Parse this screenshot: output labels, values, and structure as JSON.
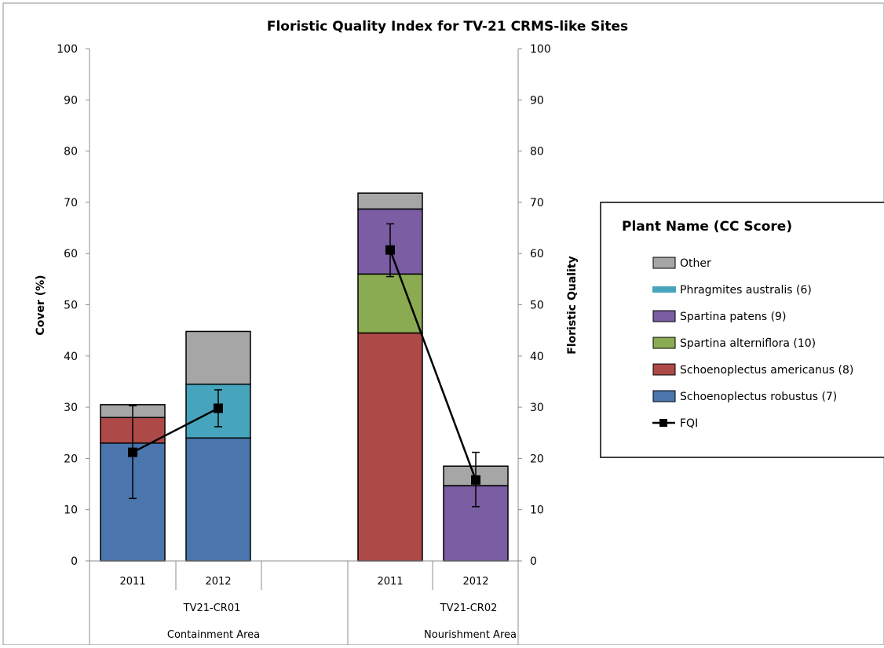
{
  "chart_data": {
    "type": "bar",
    "title": "Floristic Quality Index for TV-21 CRMS-like Sites",
    "ylabel": "Cover (%)",
    "y2label": "Floristic Quality",
    "ylim": [
      0,
      100
    ],
    "y2lim": [
      0,
      100
    ],
    "yticks": [
      "0",
      "10",
      "20",
      "30",
      "40",
      "50",
      "60",
      "70",
      "80",
      "90",
      "100"
    ],
    "categories": [
      "2011",
      "2012",
      "2011",
      "2012"
    ],
    "sites": [
      "TV21-CR01",
      "TV21-CR02"
    ],
    "areas": [
      "Containment Area",
      "Nourishment Area"
    ],
    "legend_title": "Plant Name (CC Score)",
    "legend_position": "right",
    "series": [
      {
        "name": "Schoenoplectus robustus (7)",
        "color": "#4a76ad",
        "values": [
          23,
          24,
          0,
          0
        ]
      },
      {
        "name": "Schoenoplectus americanus (8)",
        "color": "#ad4a47",
        "values": [
          5,
          0,
          44.5,
          0
        ]
      },
      {
        "name": "Spartina alterniflora (10)",
        "color": "#8aab52",
        "values": [
          0,
          0,
          11.5,
          0
        ]
      },
      {
        "name": "Spartina patens (9)",
        "color": "#7a5da2",
        "values": [
          0,
          0,
          12.7,
          14.7
        ]
      },
      {
        "name": "Phragmites australis (6)",
        "color": "#46a4bc",
        "values": [
          0,
          10.5,
          0,
          0
        ]
      },
      {
        "name": "Other",
        "color": "#a6a6a6",
        "values": [
          2.5,
          10.3,
          3.1,
          3.8
        ]
      }
    ],
    "fqi": {
      "name": "FQI",
      "color": "#000000",
      "values": [
        21.2,
        29.8,
        60.7,
        15.8
      ],
      "error_low": [
        12.2,
        26.2,
        55.5,
        10.6
      ],
      "error_high": [
        30.3,
        33.4,
        65.8,
        21.2
      ]
    },
    "legend_order": [
      "Other",
      "Phragmites australis (6)",
      "Spartina patens (9)",
      "Spartina alterniflora (10)",
      "Schoenoplectus americanus (8)",
      "Schoenoplectus robustus (7)",
      "FQI"
    ]
  }
}
